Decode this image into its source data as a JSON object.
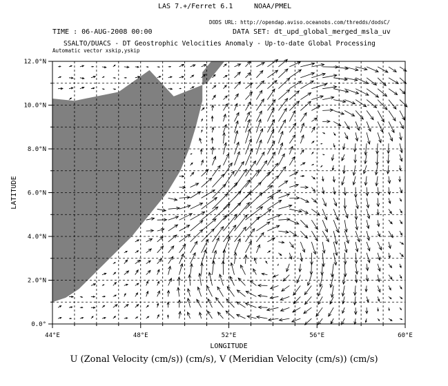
{
  "header": {
    "software": "LAS 7.+/Ferret 6.1",
    "org": "NOAA/PMEL",
    "dods_url": "DODS URL: http://opendap.aviso.oceanobs.com/thredds/dodsC/",
    "time": "TIME : 06-AUG-2008 00:00",
    "dataset": "DATA SET: dt_upd_global_merged_msla_uv",
    "subtitle": "SSALTO/DUACS - DT Geostrophic Velocities Anomaly - Up-to-date Global Processing",
    "vector_note": "Automatic vector xskip,yskip"
  },
  "footer": {
    "caption": "U (Zonal Velocity (cm/s)) (cm/s), V (Meridian Velocity (cm/s)) (cm/s)"
  },
  "chart_data": {
    "type": "vector_field",
    "xlabel": "LONGITUDE",
    "ylabel": "LATITUDE",
    "xlim": [
      44,
      60
    ],
    "ylim": [
      0,
      12
    ],
    "x_ticks": [
      "44°E",
      "48°E",
      "52°E",
      "56°E",
      "60°E"
    ],
    "x_tick_values": [
      44,
      48,
      52,
      56,
      60
    ],
    "y_ticks": [
      "0.0°",
      "2.0°N",
      "4.0°N",
      "6.0°N",
      "8.0°N",
      "10.0°N",
      "12.0°N"
    ],
    "y_tick_values": [
      0,
      2,
      4,
      6,
      8,
      10,
      12
    ],
    "grid": "dashed",
    "land_color": "#808080",
    "vector_color": "#000000",
    "land_boundary": [
      [
        44.0,
        1.0
      ],
      [
        44.6,
        1.2
      ],
      [
        45.2,
        1.6
      ],
      [
        46.0,
        2.4
      ],
      [
        46.8,
        3.2
      ],
      [
        47.6,
        4.0
      ],
      [
        48.4,
        5.0
      ],
      [
        49.2,
        6.0
      ],
      [
        49.8,
        7.0
      ],
      [
        50.2,
        8.0
      ],
      [
        50.5,
        9.0
      ],
      [
        50.8,
        10.2
      ],
      [
        50.8,
        11.5
      ],
      [
        51.2,
        12.0
      ],
      [
        51.8,
        12.0
      ],
      [
        51.0,
        11.0
      ],
      [
        49.5,
        10.4
      ],
      [
        48.4,
        11.6
      ],
      [
        47.0,
        10.6
      ],
      [
        45.0,
        10.2
      ],
      [
        44.0,
        10.3
      ]
    ],
    "eddies": [
      {
        "center": [
          53.8,
          3.4
        ],
        "radius": 2.6,
        "sense": "anticyclonic",
        "max_speed": 1.0
      },
      {
        "center": [
          56.4,
          9.2
        ],
        "radius": 2.2,
        "sense": "anticyclonic",
        "max_speed": 0.8
      },
      {
        "center": [
          50.8,
          6.2
        ],
        "radius": 1.8,
        "sense": "cyclonic",
        "max_speed": 0.55
      }
    ],
    "background_flow": [
      0.25,
      0.05
    ],
    "grid_step": 0.5
  }
}
